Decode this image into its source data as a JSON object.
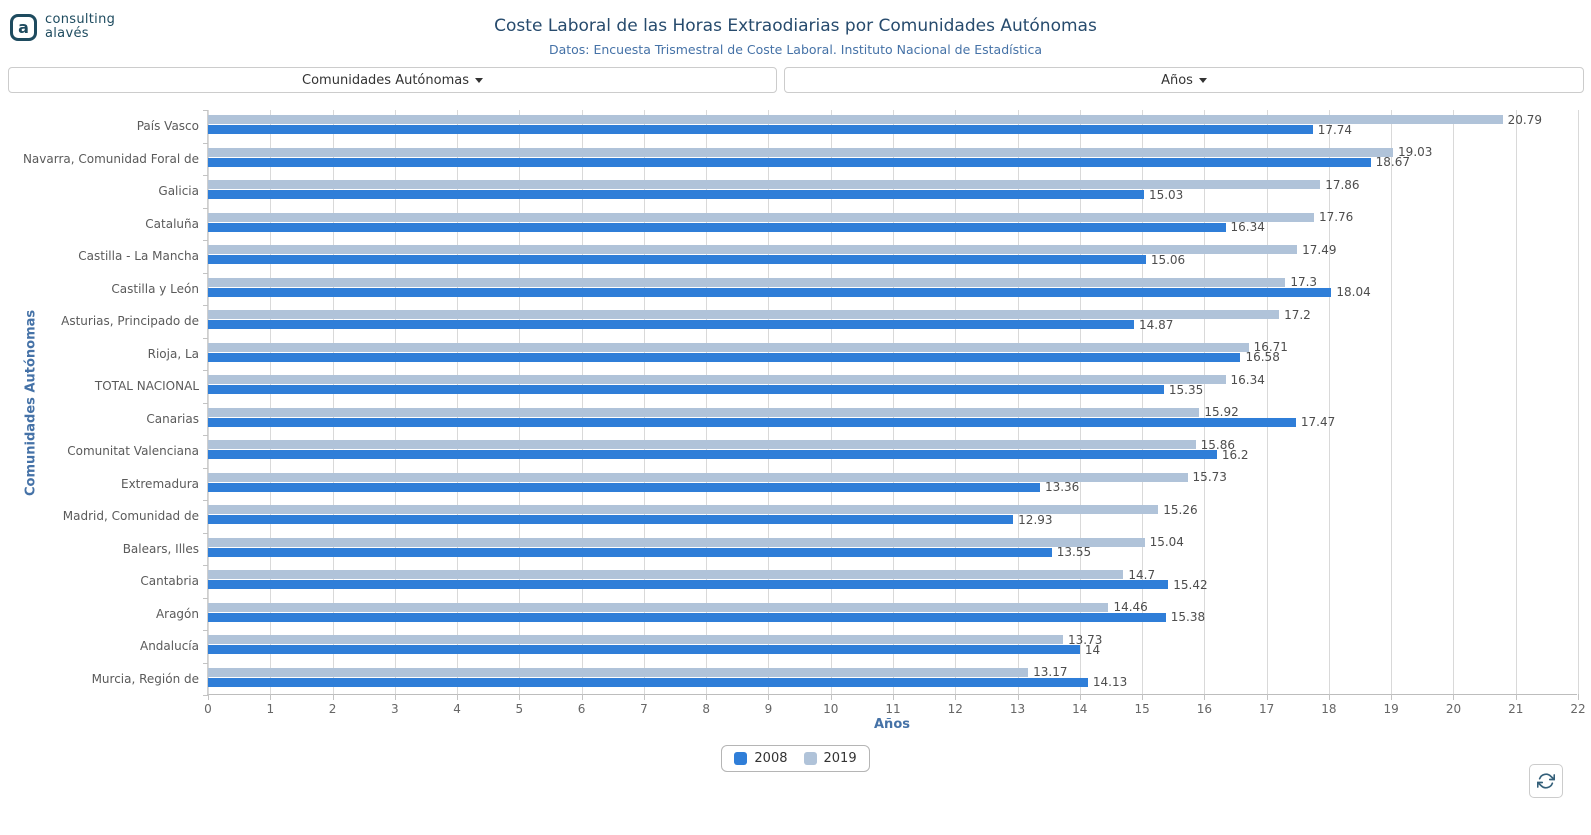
{
  "logo": {
    "icon_letter": "a",
    "line1": "consulting",
    "line2": "alavés"
  },
  "header": {
    "title": "Coste Laboral de las Horas Extraodiarias por Comunidades Autónomas",
    "subtitle": "Datos: Encuesta Trismestral de Coste Laboral. Instituto Nacional de Estadística"
  },
  "filters": {
    "communities_dropdown": "Comunidades Autónomas",
    "years_dropdown": "Años"
  },
  "chart_data": {
    "type": "bar",
    "orientation": "horizontal",
    "title": "",
    "xlabel": "Años",
    "ylabel": "Comunidades Autónomas",
    "xlim": [
      0,
      22
    ],
    "x_ticks": [
      0,
      1,
      2,
      3,
      4,
      5,
      6,
      7,
      8,
      9,
      10,
      11,
      12,
      13,
      14,
      15,
      16,
      17,
      18,
      19,
      20,
      21,
      22
    ],
    "grid": true,
    "value_labels": true,
    "legend_position": "bottom",
    "row_order_top_to_bottom": [
      "2019",
      "2008"
    ],
    "categories": [
      "País Vasco",
      "Navarra, Comunidad Foral de",
      "Galicia",
      "Cataluña",
      "Castilla - La Mancha",
      "Castilla y León",
      "Asturias, Principado de",
      "Rioja, La",
      "TOTAL NACIONAL",
      "Canarias",
      "Comunitat Valenciana",
      "Extremadura",
      "Madrid, Comunidad de",
      "Balears, Illes",
      "Cantabria",
      "Aragón",
      "Andalucía",
      "Murcia, Región de"
    ],
    "series": [
      {
        "name": "2008",
        "color": "#2f7ed8",
        "values": [
          17.74,
          18.67,
          15.03,
          16.34,
          15.06,
          18.04,
          14.87,
          16.58,
          15.35,
          17.47,
          16.2,
          13.36,
          12.93,
          13.55,
          15.42,
          15.38,
          14,
          14.13
        ]
      },
      {
        "name": "2019",
        "color": "#b0c3d9",
        "values": [
          20.79,
          19.03,
          17.86,
          17.76,
          17.49,
          17.3,
          17.2,
          16.71,
          16.34,
          15.92,
          15.86,
          15.73,
          15.26,
          15.04,
          14.7,
          14.46,
          13.73,
          13.17
        ]
      }
    ]
  },
  "colors": {
    "logo": "#1e4b5f",
    "title": "#274b6d",
    "subtitle": "#4572a7",
    "axis_title": "#4572a7",
    "gridline": "#d9d9d9"
  }
}
